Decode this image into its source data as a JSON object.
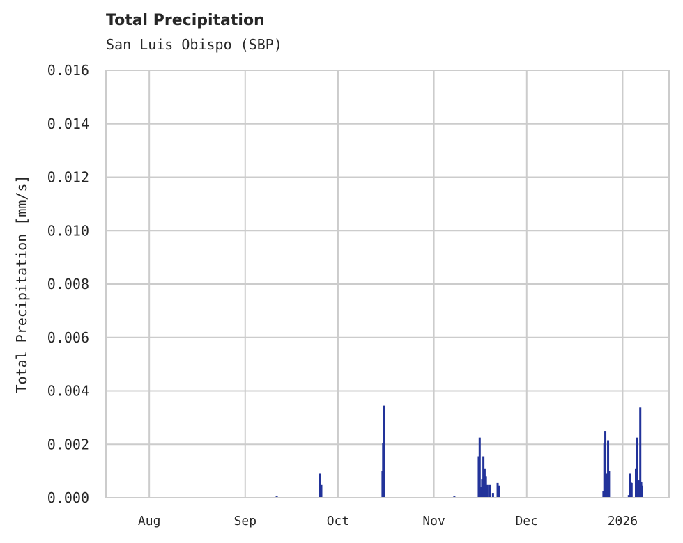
{
  "chart_data": {
    "type": "bar",
    "title": "Total Precipitation",
    "subtitle": "San Luis Obispo (SBP)",
    "xlabel": "",
    "ylabel": "Total Precipitation [mm/s]",
    "ylim": [
      0,
      0.016
    ],
    "yticks": [
      "0.000",
      "0.002",
      "0.004",
      "0.006",
      "0.008",
      "0.010",
      "0.012",
      "0.014",
      "0.016"
    ],
    "xticks": [
      "Aug",
      "Sep",
      "Oct",
      "Nov",
      "Dec",
      "2026"
    ],
    "grid": true,
    "legend": null,
    "bar_color": "#22339a",
    "x_range_days": [
      -14,
      168
    ],
    "xtick_days": [
      0,
      31,
      61,
      92,
      122,
      153
    ],
    "series": [
      {
        "name": "Total Precipitation",
        "points": [
          {
            "day": 41.2,
            "value": 5e-05
          },
          {
            "day": 55.2,
            "value": 0.0009
          },
          {
            "day": 55.6,
            "value": 0.0005
          },
          {
            "day": 75.4,
            "value": 0.001
          },
          {
            "day": 75.6,
            "value": 0.00205
          },
          {
            "day": 75.9,
            "value": 0.00345
          },
          {
            "day": 98.6,
            "value": 5e-05
          },
          {
            "day": 106.5,
            "value": 0.00155
          },
          {
            "day": 106.8,
            "value": 0.00225
          },
          {
            "day": 107.2,
            "value": 0.0004
          },
          {
            "day": 107.6,
            "value": 0.0007
          },
          {
            "day": 108.0,
            "value": 0.00155
          },
          {
            "day": 108.4,
            "value": 0.0011
          },
          {
            "day": 108.8,
            "value": 0.0008
          },
          {
            "day": 109.3,
            "value": 0.0005
          },
          {
            "day": 110.0,
            "value": 0.0005
          },
          {
            "day": 111.1,
            "value": 0.00018
          },
          {
            "day": 112.6,
            "value": 0.00055
          },
          {
            "day": 113.0,
            "value": 0.00045
          },
          {
            "day": 146.8,
            "value": 0.00025
          },
          {
            "day": 147.1,
            "value": 0.00205
          },
          {
            "day": 147.4,
            "value": 0.0025
          },
          {
            "day": 147.8,
            "value": 0.0009
          },
          {
            "day": 148.3,
            "value": 0.00215
          },
          {
            "day": 148.6,
            "value": 0.001
          },
          {
            "day": 155.0,
            "value": 0.0001
          },
          {
            "day": 155.3,
            "value": 0.0009
          },
          {
            "day": 155.6,
            "value": 0.0006
          },
          {
            "day": 155.9,
            "value": 0.00055
          },
          {
            "day": 157.3,
            "value": 0.0011
          },
          {
            "day": 157.6,
            "value": 0.00225
          },
          {
            "day": 157.9,
            "value": 0.0005
          },
          {
            "day": 158.3,
            "value": 0.00065
          },
          {
            "day": 158.7,
            "value": 0.00338
          },
          {
            "day": 159.0,
            "value": 0.0006
          },
          {
            "day": 159.3,
            "value": 0.00045
          }
        ]
      }
    ]
  }
}
